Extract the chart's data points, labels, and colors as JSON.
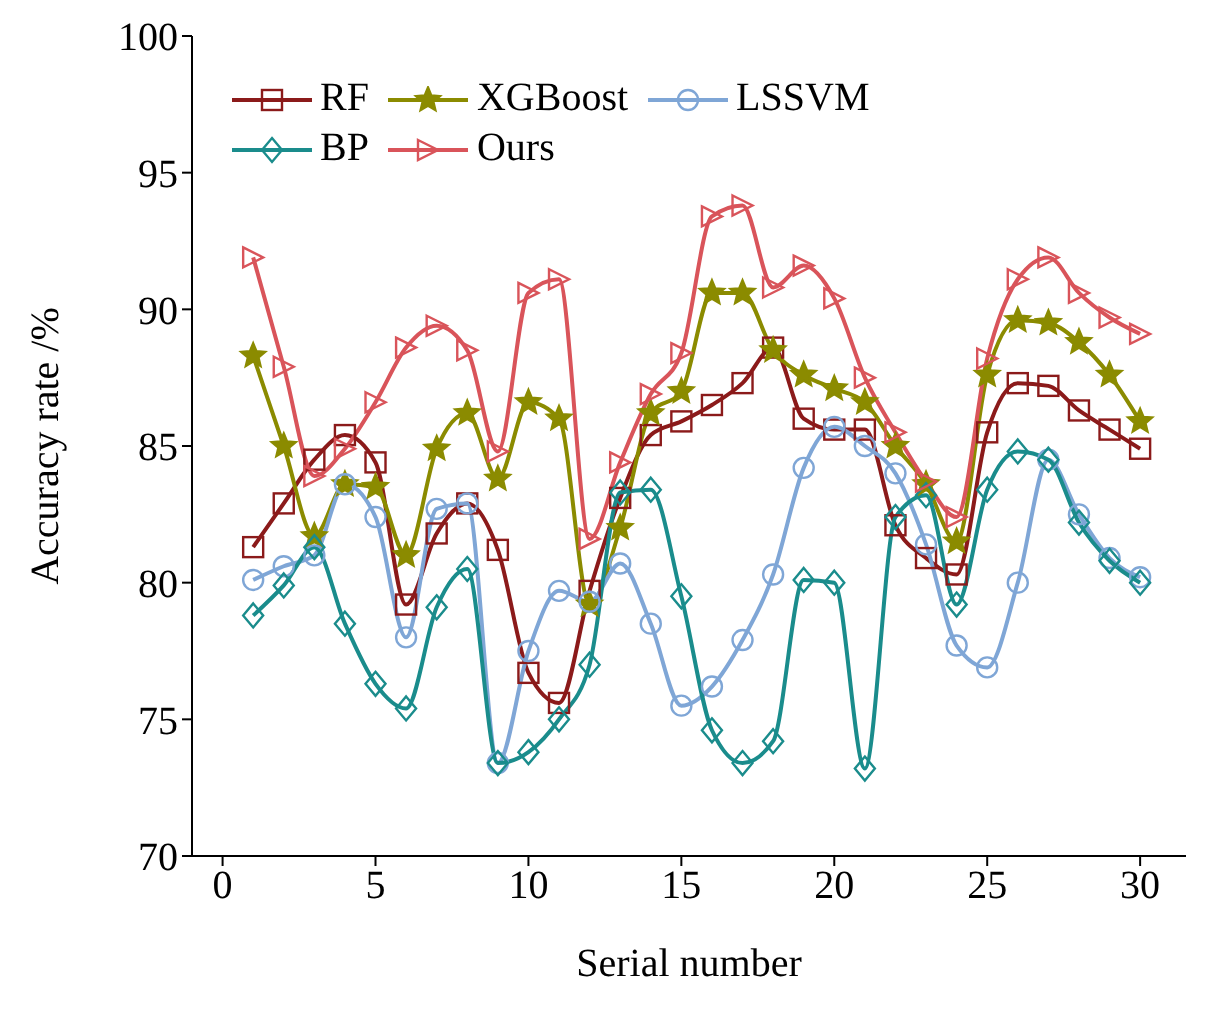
{
  "chart_data": {
    "type": "line",
    "xlabel": "Serial number",
    "ylabel": "Accuracy rate /%",
    "x": [
      1,
      2,
      3,
      4,
      5,
      6,
      7,
      8,
      9,
      10,
      11,
      12,
      13,
      14,
      15,
      16,
      17,
      18,
      19,
      20,
      21,
      22,
      23,
      24,
      25,
      26,
      27,
      28,
      29,
      30
    ],
    "xlim": [
      -1,
      31.5
    ],
    "xticks": [
      0,
      5,
      10,
      15,
      20,
      25,
      30
    ],
    "ylim": [
      70,
      100
    ],
    "yticks": [
      70,
      75,
      80,
      85,
      90,
      95,
      100
    ],
    "grid": false,
    "legend": "top left",
    "line_style": "solid",
    "series": [
      {
        "name": "RF",
        "color": "#8b1a1a",
        "marker": "square",
        "values": [
          81.3,
          82.9,
          84.5,
          85.4,
          84.4,
          79.2,
          81.8,
          82.9,
          81.2,
          76.7,
          75.6,
          79.7,
          83.1,
          85.4,
          85.9,
          86.5,
          87.3,
          88.6,
          86.0,
          85.6,
          85.6,
          82.1,
          80.9,
          80.3,
          85.5,
          87.3,
          87.2,
          86.3,
          85.6,
          84.9
        ]
      },
      {
        "name": "XGBoost",
        "color": "#8b8b00",
        "marker": "star",
        "values": [
          88.3,
          85.0,
          81.7,
          83.6,
          83.5,
          81.0,
          84.9,
          86.2,
          83.8,
          86.6,
          86.0,
          79.2,
          82.0,
          86.2,
          87.0,
          90.6,
          90.6,
          88.5,
          87.6,
          87.1,
          86.6,
          85.0,
          83.6,
          81.5,
          87.6,
          89.6,
          89.5,
          88.8,
          87.6,
          85.9
        ]
      },
      {
        "name": "LSSVM",
        "color": "#7fa6d6",
        "marker": "circle",
        "values": [
          80.1,
          80.6,
          81.0,
          83.6,
          82.4,
          78.0,
          82.7,
          82.9,
          73.4,
          77.5,
          79.7,
          79.3,
          80.7,
          78.5,
          75.5,
          76.2,
          77.9,
          80.3,
          84.2,
          85.7,
          85.0,
          84.0,
          81.4,
          77.7,
          76.9,
          80.0,
          84.5,
          82.5,
          80.9,
          80.2
        ]
      },
      {
        "name": "BP",
        "color": "#1a8c8c",
        "marker": "diamond",
        "values": [
          78.8,
          79.9,
          81.3,
          78.5,
          76.3,
          75.4,
          79.1,
          80.5,
          73.4,
          73.8,
          75.0,
          77.0,
          83.3,
          83.4,
          79.5,
          74.6,
          73.4,
          74.2,
          80.1,
          80.0,
          73.2,
          82.4,
          83.2,
          79.2,
          83.4,
          84.8,
          84.5,
          82.2,
          80.8,
          80.0
        ]
      },
      {
        "name": "Ours",
        "color": "#d9545a",
        "marker": "triangle",
        "values": [
          91.9,
          87.9,
          83.9,
          84.9,
          86.6,
          88.6,
          89.4,
          88.5,
          84.8,
          90.6,
          91.1,
          81.6,
          84.4,
          86.9,
          88.4,
          93.4,
          93.8,
          90.8,
          91.6,
          90.4,
          87.5,
          85.5,
          83.7,
          82.4,
          88.2,
          91.1,
          91.9,
          90.6,
          89.7,
          89.1
        ]
      }
    ]
  }
}
